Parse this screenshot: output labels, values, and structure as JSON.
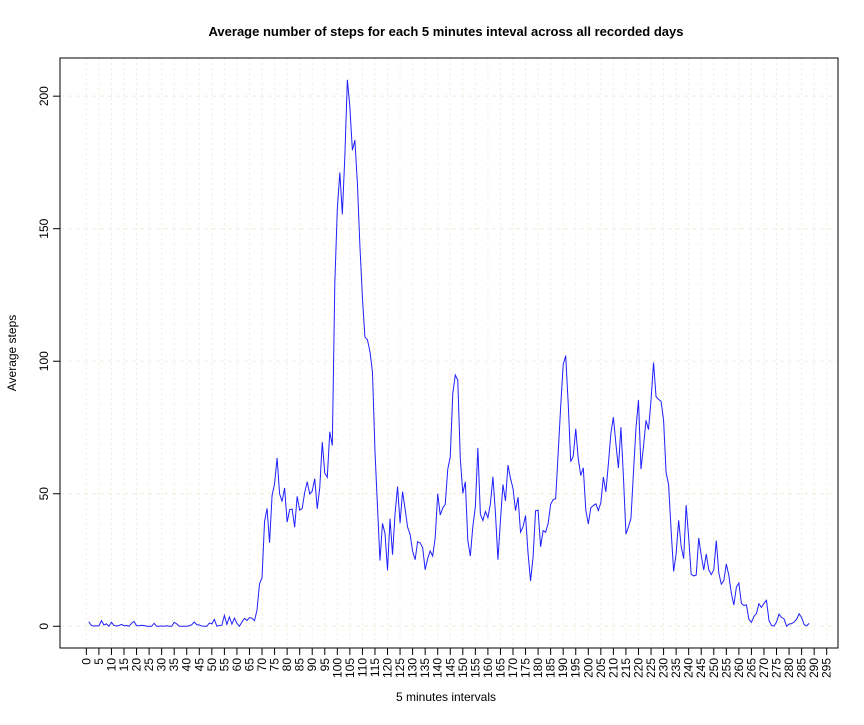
{
  "chart_data": {
    "type": "line",
    "title": "Average number of steps for each 5 minutes inteval across all recorded days",
    "x_label": "5 minutes intervals",
    "y_label": "Average steps",
    "x": [
      1,
      2,
      3,
      4,
      5,
      6,
      7,
      8,
      9,
      10,
      11,
      12,
      13,
      14,
      15,
      16,
      17,
      18,
      19,
      20,
      21,
      22,
      23,
      24,
      25,
      26,
      27,
      28,
      29,
      30,
      31,
      32,
      33,
      34,
      35,
      36,
      37,
      38,
      39,
      40,
      41,
      42,
      43,
      44,
      45,
      46,
      47,
      48,
      49,
      50,
      51,
      52,
      53,
      54,
      55,
      56,
      57,
      58,
      59,
      60,
      61,
      62,
      63,
      64,
      65,
      66,
      67,
      68,
      69,
      70,
      71,
      72,
      73,
      74,
      75,
      76,
      77,
      78,
      79,
      80,
      81,
      82,
      83,
      84,
      85,
      86,
      87,
      88,
      89,
      90,
      91,
      92,
      93,
      94,
      95,
      96,
      97,
      98,
      99,
      100,
      101,
      102,
      103,
      104,
      105,
      106,
      107,
      108,
      109,
      110,
      111,
      112,
      113,
      114,
      115,
      116,
      117,
      118,
      119,
      120,
      121,
      122,
      123,
      124,
      125,
      126,
      127,
      128,
      129,
      130,
      131,
      132,
      133,
      134,
      135,
      136,
      137,
      138,
      139,
      140,
      141,
      142,
      143,
      144,
      145,
      146,
      147,
      148,
      149,
      150,
      151,
      152,
      153,
      154,
      155,
      156,
      157,
      158,
      159,
      160,
      161,
      162,
      163,
      164,
      165,
      166,
      167,
      168,
      169,
      170,
      171,
      172,
      173,
      174,
      175,
      176,
      177,
      178,
      179,
      180,
      181,
      182,
      183,
      184,
      185,
      186,
      187,
      188,
      189,
      190,
      191,
      192,
      193,
      194,
      195,
      196,
      197,
      198,
      199,
      200,
      201,
      202,
      203,
      204,
      205,
      206,
      207,
      208,
      209,
      210,
      211,
      212,
      213,
      214,
      215,
      216,
      217,
      218,
      219,
      220,
      221,
      222,
      223,
      224,
      225,
      226,
      227,
      228,
      229,
      230,
      231,
      232,
      233,
      234,
      235,
      236,
      237,
      238,
      239,
      240,
      241,
      242,
      243,
      244,
      245,
      246,
      247,
      248,
      249,
      250,
      251,
      252,
      253,
      254,
      255,
      256,
      257,
      258,
      259,
      260,
      261,
      262,
      263,
      264,
      265,
      266,
      267,
      268,
      269,
      270,
      271,
      272,
      273,
      274,
      275,
      276,
      277,
      278,
      279,
      280,
      281,
      282,
      283,
      284,
      285,
      286,
      287,
      288
    ],
    "series": [
      {
        "color": "#2020ff",
        "values": [
          1.7,
          0.3,
          0.1,
          0.2,
          0.1,
          2.1,
          0.5,
          0.9,
          0,
          1.5,
          0.3,
          0.1,
          0.3,
          0.7,
          0.2,
          0.3,
          0,
          1.1,
          1.8,
          0.2,
          0.2,
          0.4,
          0.3,
          0,
          0,
          0,
          1.1,
          0,
          0,
          0.1,
          0,
          0.2,
          0,
          0,
          1.5,
          0.9,
          0,
          0,
          0,
          0,
          0.2,
          0.6,
          1.6,
          0.6,
          0.5,
          0.1,
          0,
          0,
          1.2,
          0.9,
          2.6,
          0,
          0.3,
          0.4,
          4.1,
          0.7,
          3.5,
          0.8,
          3.1,
          1.1,
          0,
          1.6,
          3,
          2.2,
          3.3,
          3,
          2.1,
          6.1,
          16,
          18.3,
          39.5,
          44.5,
          31.5,
          49.3,
          53.8,
          63.5,
          50,
          47.1,
          52.2,
          39.3,
          44,
          44.2,
          37.4,
          49,
          43.8,
          44.4,
          50.5,
          54.5,
          49.9,
          51,
          55.7,
          44.3,
          52.3,
          69.5,
          57.8,
          56.2,
          73.4,
          68.2,
          129.4,
          157.5,
          171.2,
          155.4,
          177.3,
          206.2,
          195.9,
          179.6,
          183.4,
          167,
          143.5,
          124,
          109.1,
          108.1,
          103.7,
          96,
          66.2,
          45.2,
          24.8,
          38.8,
          35,
          21.1,
          40.6,
          27,
          42.4,
          52.7,
          38.9,
          50.8,
          44.3,
          37.4,
          34.7,
          28.3,
          25.1,
          31.9,
          31.4,
          29.7,
          21.3,
          25.5,
          28.4,
          26.5,
          33.4,
          50,
          42,
          44.6,
          46,
          59.2,
          63.9,
          87.7,
          94.8,
          92.8,
          63.4,
          50.2,
          54.5,
          32.4,
          26.5,
          37.7,
          45.1,
          67.3,
          42.3,
          39.9,
          43.3,
          41,
          46.2,
          56.4,
          42.8,
          25.1,
          40,
          53.5,
          47.3,
          60.8,
          55.8,
          52,
          43.6,
          48.7,
          35.5,
          37.5,
          41.8,
          27.5,
          17.1,
          26.1,
          43.6,
          43.8,
          30,
          36.1,
          35.5,
          38.8,
          46,
          47.8,
          48.1,
          65.3,
          82.9,
          98.7,
          102.1,
          84,
          62.1,
          64.1,
          74.5,
          63.2,
          56.9,
          59.8,
          43.9,
          38.6,
          44.7,
          45.5,
          46.2,
          43.7,
          46.6,
          56.3,
          50.7,
          61.2,
          72.7,
          78.9,
          68.9,
          59.7,
          75.1,
          56.5,
          34.8,
          37.5,
          40.7,
          58,
          74.7,
          85.3,
          59.3,
          67.8,
          77.7,
          74.2,
          85.3,
          99.5,
          86.6,
          85.6,
          84.9,
          77.8,
          58,
          53.4,
          36.3,
          20.7,
          27.4,
          40,
          30.2,
          25.5,
          45.7,
          33.5,
          19.6,
          19,
          19.3,
          33.3,
          26.8,
          21.2,
          27.3,
          21.3,
          19.5,
          21.3,
          32.3,
          20.2,
          15.9,
          17.2,
          23.5,
          19.2,
          12.5,
          8,
          14.7,
          16.3,
          8.7,
          7.8,
          8.1,
          2.6,
          1.5,
          3.7,
          4.8,
          8.5,
          7.1,
          8.7,
          9.8,
          2.2,
          0.3,
          0.1,
          1.6,
          4.6,
          3.3,
          2.8,
          0,
          0.8,
          1,
          1.6,
          2.6,
          4.7,
          3.3,
          0.6,
          0.2,
          1.1
        ]
      }
    ],
    "xlim": [
      -10.5,
      299.5
    ],
    "ylim": [
      -8.2,
      214.4
    ],
    "xticks": [
      0,
      5,
      10,
      15,
      20,
      25,
      30,
      35,
      40,
      45,
      50,
      55,
      60,
      65,
      70,
      75,
      80,
      85,
      90,
      95,
      100,
      105,
      110,
      115,
      120,
      125,
      130,
      135,
      140,
      145,
      150,
      155,
      160,
      165,
      170,
      175,
      180,
      185,
      190,
      195,
      200,
      205,
      210,
      215,
      220,
      225,
      230,
      235,
      240,
      245,
      250,
      255,
      260,
      265,
      270,
      275,
      280,
      285,
      290,
      295
    ],
    "yticks": [
      0,
      50,
      100,
      150,
      200
    ],
    "grid": true
  }
}
